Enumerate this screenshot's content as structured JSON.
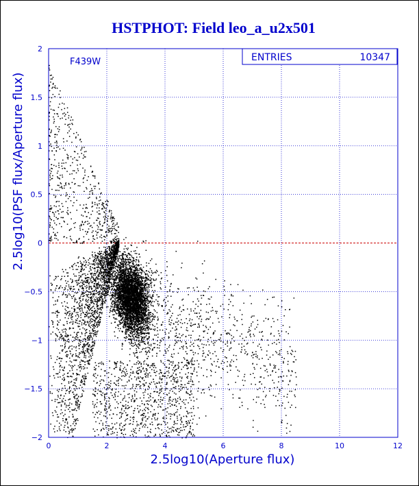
{
  "chart_data": {
    "type": "scatter",
    "title": "HSTPHOT: Field leo_a_u2x501",
    "xlabel": "2.5log10(Aperture flux)",
    "ylabel": "2.5log10(PSF flux/Aperture flux)",
    "xlim": [
      0,
      12
    ],
    "ylim": [
      -2,
      2
    ],
    "x_ticks": [
      "0",
      "2",
      "4",
      "6",
      "8",
      "10",
      "12"
    ],
    "y_ticks": [
      "−2",
      "−1.5",
      "−1",
      "−0.5",
      "0",
      "0.5",
      "1",
      "1.5",
      "2"
    ],
    "x_tick_values": [
      0,
      2,
      4,
      6,
      8,
      10,
      12
    ],
    "y_tick_values": [
      -2,
      -1.5,
      -1,
      -0.5,
      0,
      0.5,
      1,
      1.5,
      2
    ],
    "grid": true,
    "reference_line": {
      "y": 0,
      "color": "#cc0000",
      "style": "dashed"
    },
    "annotation": "F439W",
    "stats_box": {
      "label": "ENTRIES",
      "value": "10347"
    },
    "point_color": "#000000",
    "distribution": {
      "core": {
        "x_center": 2.8,
        "x_spread": 0.8,
        "y_center": -0.55,
        "y_spread": 0.35
      },
      "x_range": [
        0,
        8.5
      ],
      "y_range": [
        -2,
        1.9
      ]
    }
  }
}
